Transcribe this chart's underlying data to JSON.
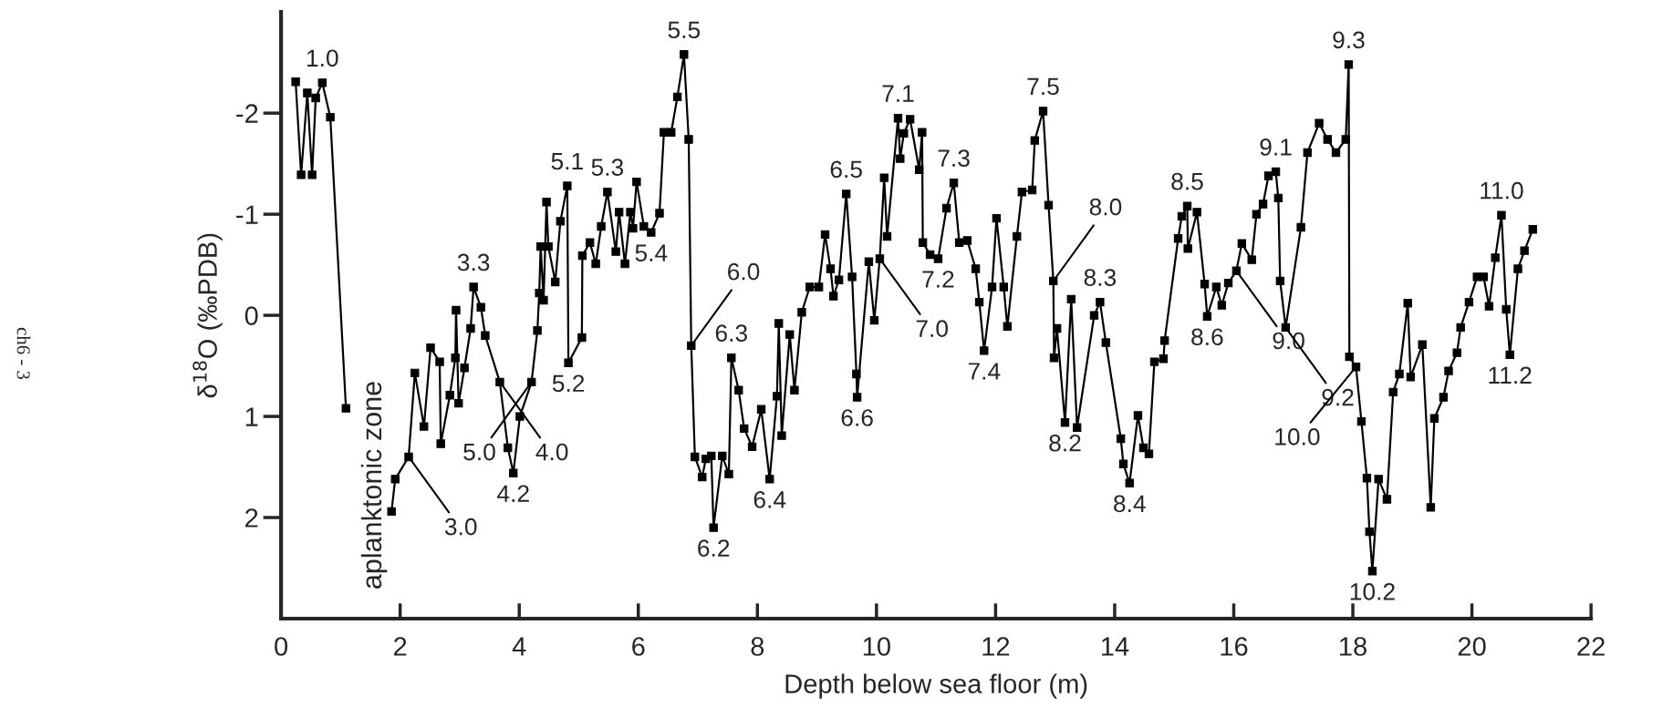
{
  "chart_data": {
    "type": "line",
    "xlabel": "Depth below sea floor (m)",
    "ylabel": "δ$^{18}$O (‰PDB)",
    "xlim": [
      0,
      22
    ],
    "xticks": [
      0,
      2,
      4,
      6,
      8,
      10,
      12,
      14,
      16,
      18,
      20,
      22
    ],
    "ylim": [
      3.0,
      -3.0
    ],
    "yticks": [
      -2,
      -1,
      0,
      1,
      2
    ],
    "grid": false,
    "marker": "square",
    "line_style": "solid",
    "series": [
      {
        "color": "#000000",
        "x": [
          0.245,
          0.337,
          0.441,
          0.521,
          0.582,
          0.692,
          0.827,
          1.09
        ],
        "values": [
          -2.31,
          -1.39,
          -2.2,
          -1.39,
          -2.15,
          -2.3,
          -1.96,
          0.92
        ]
      },
      {
        "color": "#000000",
        "x": [
          1.855,
          1.917,
          2.143,
          2.247,
          2.4,
          2.511,
          2.664,
          2.682,
          2.835,
          2.927,
          2.939,
          2.982,
          3.08,
          3.184,
          3.233,
          3.356,
          3.429,
          3.674,
          3.809,
          3.901,
          4.011,
          4.207,
          4.305,
          4.336,
          4.36,
          4.409,
          4.458,
          4.489,
          4.605,
          4.691,
          4.807,
          4.826,
          5.052,
          5.06,
          5.187,
          5.285,
          5.377,
          5.481,
          5.622,
          5.677,
          5.775,
          5.867,
          5.91,
          5.971,
          6.093,
          6.216,
          6.356,
          6.43,
          6.552,
          6.656,
          6.767,
          6.846,
          6.889,
          6.95,
          7.073,
          7.134,
          7.226,
          7.263,
          7.41,
          7.52,
          7.563,
          7.685,
          7.777,
          7.912,
          8.065,
          8.206,
          8.328,
          8.359,
          8.408,
          8.543,
          8.622,
          8.745,
          8.879,
          9.032,
          9.137,
          9.228,
          9.277,
          9.369,
          9.492,
          9.59,
          9.663,
          9.675,
          9.871,
          9.963,
          10.055,
          10.129,
          10.178,
          10.362,
          10.398,
          10.459,
          10.564,
          10.717,
          10.766,
          10.778,
          10.9,
          11.035,
          11.176,
          11.298,
          11.39,
          11.525,
          11.666,
          11.727,
          11.807,
          11.941,
          12.015,
          12.137,
          12.198,
          12.358,
          12.443,
          12.615,
          12.658,
          12.798,
          12.89,
          12.97,
          12.982,
          13.031,
          13.166,
          13.27,
          13.368,
          13.656,
          13.754,
          13.852,
          14.103,
          14.146,
          14.25,
          14.391,
          14.483,
          14.575,
          14.667,
          14.82,
          14.839,
          15.066,
          15.127,
          15.219,
          15.229,
          15.382,
          15.511,
          15.554,
          15.707,
          15.799,
          15.909,
          16.044,
          16.136,
          16.302,
          16.381,
          16.492,
          16.583,
          16.706,
          16.748,
          16.779,
          16.871,
          17.128,
          17.238,
          17.434,
          17.575,
          17.716,
          17.881,
          17.93,
          17.942,
          18.053,
          18.144,
          18.236,
          18.279,
          18.328,
          18.432,
          18.573,
          18.677,
          18.781,
          18.922,
          18.971,
          19.167,
          19.308,
          19.369,
          19.522,
          19.608,
          19.749,
          19.81,
          19.951,
          20.086,
          20.196,
          20.288,
          20.392,
          20.496,
          20.576,
          20.637,
          20.772,
          20.882,
          21.022
        ],
        "values": [
          1.94,
          1.62,
          1.4,
          0.57,
          1.1,
          0.32,
          0.46,
          1.27,
          0.79,
          0.42,
          -0.05,
          0.87,
          0.52,
          0.13,
          -0.28,
          -0.08,
          0.2,
          0.66,
          1.31,
          1.56,
          1.0,
          0.66,
          0.15,
          -0.22,
          -0.68,
          -0.15,
          -1.12,
          -0.68,
          -0.33,
          -0.93,
          -1.28,
          0.47,
          0.22,
          -0.59,
          -0.72,
          -0.51,
          -0.88,
          -1.22,
          -0.63,
          -1.02,
          -0.51,
          -1.02,
          -0.86,
          -1.32,
          -0.88,
          -0.82,
          -1.01,
          -1.81,
          -1.81,
          -2.16,
          -2.58,
          -1.74,
          0.3,
          1.4,
          1.6,
          1.42,
          1.39,
          2.1,
          1.39,
          1.57,
          0.42,
          0.74,
          1.12,
          1.3,
          0.93,
          1.62,
          0.8,
          0.08,
          1.19,
          0.19,
          0.74,
          -0.03,
          -0.28,
          -0.28,
          -0.8,
          -0.46,
          -0.19,
          -0.35,
          -1.2,
          -0.38,
          0.58,
          0.81,
          -0.53,
          0.05,
          -0.56,
          -1.36,
          -0.78,
          -1.95,
          -1.55,
          -1.8,
          -1.94,
          -1.44,
          -1.81,
          -0.72,
          -0.6,
          -0.56,
          -1.06,
          -1.31,
          -0.72,
          -0.74,
          -0.46,
          -0.13,
          0.35,
          -0.28,
          -0.96,
          -0.28,
          0.11,
          -0.78,
          -1.22,
          -1.24,
          -1.73,
          -2.02,
          -1.09,
          -0.34,
          0.42,
          0.13,
          1.06,
          -0.16,
          1.11,
          0.0,
          -0.13,
          0.27,
          1.22,
          1.47,
          1.66,
          0.99,
          1.31,
          1.37,
          0.46,
          0.43,
          0.25,
          -0.76,
          -0.98,
          -1.08,
          -0.66,
          -1.02,
          -0.31,
          0.01,
          -0.28,
          -0.1,
          -0.32,
          -0.44,
          -0.71,
          -0.55,
          -1.0,
          -1.1,
          -1.38,
          -1.42,
          -1.16,
          -0.34,
          0.12,
          -0.87,
          -1.61,
          -1.9,
          -1.74,
          -1.61,
          -1.74,
          -2.48,
          0.41,
          0.51,
          1.05,
          1.61,
          2.14,
          2.53,
          1.62,
          1.82,
          0.76,
          0.58,
          -0.12,
          0.61,
          0.29,
          1.9,
          1.02,
          0.81,
          0.55,
          0.37,
          0.12,
          -0.13,
          -0.38,
          -0.38,
          -0.09,
          -0.57,
          -0.99,
          -0.06,
          0.39,
          -0.46,
          -0.64,
          -0.85
        ]
      }
    ],
    "annotations": [
      {
        "text": "1.0",
        "x": 0.692,
        "y": -2.3
      },
      {
        "text": "3.0",
        "x": 2.143,
        "y": 1.4
      },
      {
        "text": "3.3",
        "x": 3.233,
        "y": -0.28
      },
      {
        "text": "4.0",
        "x": 3.674,
        "y": 0.66
      },
      {
        "text": "4.2",
        "x": 3.901,
        "y": 1.56
      },
      {
        "text": "5.0",
        "x": 4.207,
        "y": 0.66
      },
      {
        "text": "5.1",
        "x": 4.807,
        "y": -1.28
      },
      {
        "text": "5.2",
        "x": 4.826,
        "y": 0.47
      },
      {
        "text": "5.3",
        "x": 5.481,
        "y": -1.22
      },
      {
        "text": "5.4",
        "x": 6.216,
        "y": -0.82
      },
      {
        "text": "5.5",
        "x": 6.767,
        "y": -2.58
      },
      {
        "text": "6.0",
        "x": 6.889,
        "y": 0.3
      },
      {
        "text": "6.2",
        "x": 7.263,
        "y": 2.1
      },
      {
        "text": "6.3",
        "x": 7.563,
        "y": 0.42
      },
      {
        "text": "6.4",
        "x": 8.206,
        "y": 1.62
      },
      {
        "text": "6.5",
        "x": 9.492,
        "y": -1.2
      },
      {
        "text": "6.6",
        "x": 9.675,
        "y": 0.81
      },
      {
        "text": "7.0",
        "x": 10.055,
        "y": -0.56
      },
      {
        "text": "7.1",
        "x": 10.362,
        "y": -1.95
      },
      {
        "text": "7.2",
        "x": 11.035,
        "y": -0.56
      },
      {
        "text": "7.3",
        "x": 11.298,
        "y": -1.31
      },
      {
        "text": "7.4",
        "x": 11.807,
        "y": 0.35
      },
      {
        "text": "7.5",
        "x": 12.798,
        "y": -2.02
      },
      {
        "text": "8.0",
        "x": 12.97,
        "y": -0.34
      },
      {
        "text": "8.2",
        "x": 13.166,
        "y": 1.06
      },
      {
        "text": "8.3",
        "x": 13.754,
        "y": -0.13
      },
      {
        "text": "8.4",
        "x": 14.25,
        "y": 1.66
      },
      {
        "text": "8.5",
        "x": 15.219,
        "y": -1.08
      },
      {
        "text": "8.6",
        "x": 15.554,
        "y": 0.01
      },
      {
        "text": "9.0",
        "x": 16.044,
        "y": -0.44
      },
      {
        "text": "9.1",
        "x": 16.706,
        "y": -1.42
      },
      {
        "text": "9.2",
        "x": 16.871,
        "y": 0.12
      },
      {
        "text": "9.3",
        "x": 17.93,
        "y": -2.48
      },
      {
        "text": "10.0",
        "x": 18.053,
        "y": 0.51
      },
      {
        "text": "10.2",
        "x": 18.328,
        "y": 2.53
      },
      {
        "text": "11.0",
        "x": 20.496,
        "y": -0.99
      },
      {
        "text": "11.2",
        "x": 20.637,
        "y": 0.39
      },
      "aplanktonic zone",
      "ch6 - 3"
    ]
  }
}
